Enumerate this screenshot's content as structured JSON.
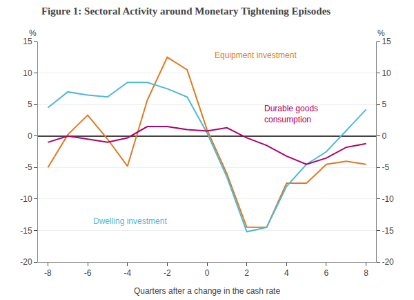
{
  "chart_data": {
    "type": "line",
    "title": "Figure 1: Sectoral Activity around Monetary Tightening Episodes",
    "xlabel": "Quarters after a change in the cash rate",
    "ylabel": "%",
    "y2label": "%",
    "x": [
      -8,
      -7,
      -6,
      -5,
      -4,
      -3,
      -2,
      -1,
      0,
      1,
      2,
      3,
      4,
      5,
      6,
      7,
      8
    ],
    "series": [
      {
        "name": "Equipment investment",
        "color": "#E07820",
        "values": [
          -5.0,
          0.2,
          3.3,
          -0.5,
          -4.8,
          5.7,
          12.5,
          10.5,
          1.0,
          -6.0,
          -14.5,
          -14.5,
          -7.5,
          -7.5,
          -4.5,
          -4.0,
          -4.5
        ]
      },
      {
        "name": "Dwelling investment",
        "color": "#4DB8D8",
        "values": [
          4.5,
          7.0,
          6.5,
          6.2,
          8.5,
          8.5,
          7.5,
          6.2,
          0.5,
          -6.5,
          -15.2,
          -14.5,
          -8.0,
          -4.5,
          -2.5,
          0.8,
          4.2
        ]
      },
      {
        "name": "Durable goods\nconsumption",
        "color": "#B0006A",
        "values": [
          -1.0,
          0.0,
          -0.5,
          -1.0,
          -0.3,
          1.5,
          1.5,
          1.0,
          0.8,
          1.3,
          -0.3,
          -1.5,
          -3.2,
          -4.5,
          -3.5,
          -1.8,
          -1.2
        ]
      }
    ],
    "annotations": [
      {
        "text": "Equipment investment",
        "x": 0.3,
        "y": 12.8,
        "color": "#E07820"
      },
      {
        "text": "Durable goods\nconsumption",
        "x": 2.8,
        "y": 3.5,
        "color": "#B0006A"
      },
      {
        "text": "Dwelling investment",
        "x": -5.8,
        "y": -13.5,
        "color": "#4DB8D8"
      }
    ],
    "xlim": [
      -8.5,
      8.5
    ],
    "xticks": [
      -8,
      -6,
      -4,
      -2,
      0,
      2,
      4,
      6,
      8
    ],
    "ylim": [
      -20,
      15
    ],
    "yticks": [
      -20,
      -15,
      -10,
      -5,
      0,
      5,
      10,
      15
    ],
    "y2lim": [
      -20,
      15
    ],
    "y2ticks": [
      -20,
      -15,
      -10,
      -5,
      0,
      5,
      10,
      15
    ],
    "grid": true
  }
}
